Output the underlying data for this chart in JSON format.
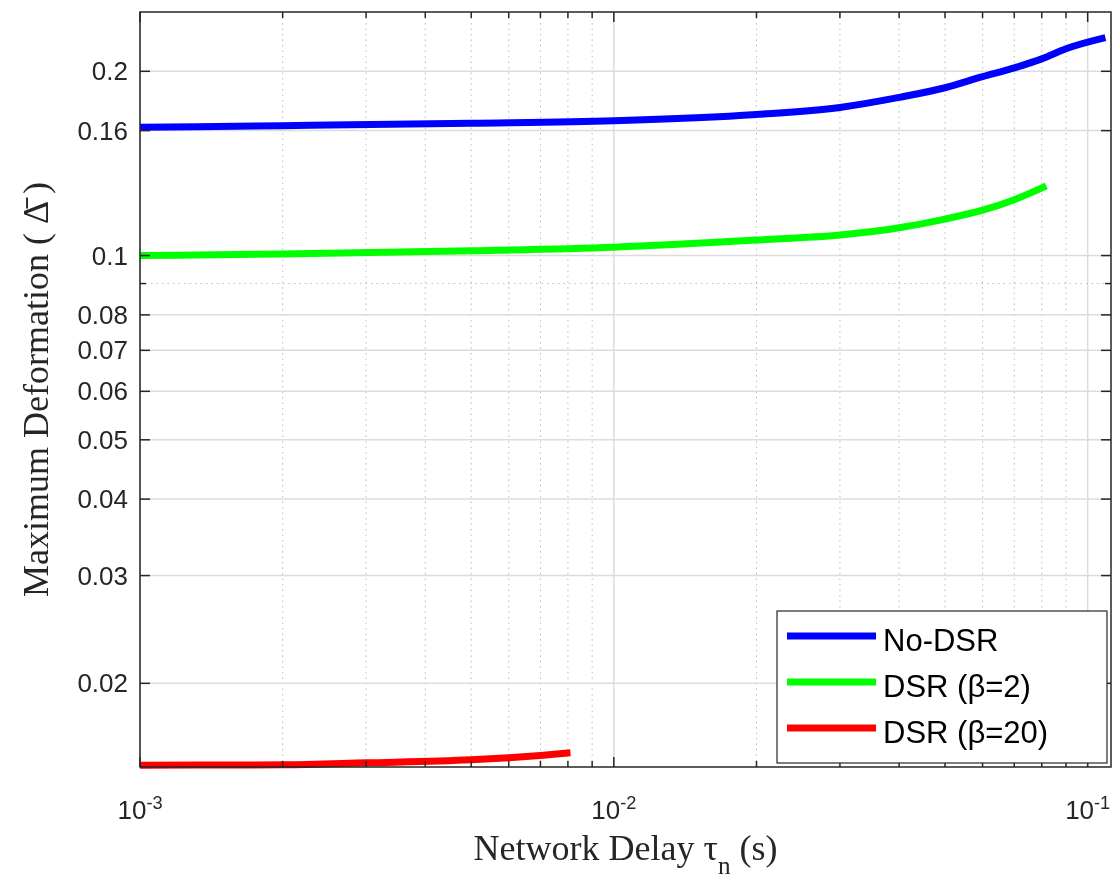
{
  "chart_data": {
    "type": "line",
    "xlabel": "Network Delay τ$_{n}$ (s)",
    "ylabel": "Maximum Deformation ( Δ̄ )",
    "log": "xy",
    "grid": true,
    "legend": "bottom right",
    "line_style": "solid",
    "marker": "none",
    "xlim": [
      0.001,
      0.112
    ],
    "ylim": [
      0.0146,
      0.25
    ],
    "xticks": [
      {
        "value": 0.001,
        "label": "10$^{-3}$"
      },
      {
        "value": 0.002,
        "label": null
      },
      {
        "value": 0.003,
        "label": null
      },
      {
        "value": 0.004,
        "label": null
      },
      {
        "value": 0.005,
        "label": null
      },
      {
        "value": 0.006,
        "label": null
      },
      {
        "value": 0.007,
        "label": null
      },
      {
        "value": 0.008,
        "label": null
      },
      {
        "value": 0.009,
        "label": null
      },
      {
        "value": 0.01,
        "label": "10$^{-2}$"
      },
      {
        "value": 0.02,
        "label": null
      },
      {
        "value": 0.03,
        "label": null
      },
      {
        "value": 0.04,
        "label": null
      },
      {
        "value": 0.05,
        "label": null
      },
      {
        "value": 0.06,
        "label": null
      },
      {
        "value": 0.07,
        "label": null
      },
      {
        "value": 0.08,
        "label": null
      },
      {
        "value": 0.09,
        "label": null
      },
      {
        "value": 0.1,
        "label": "10$^{-1}$"
      }
    ],
    "yticks": [
      0.02,
      0.03,
      0.04,
      0.05,
      0.06,
      0.07,
      0.08,
      {
        "value": 0.09,
        "label": null
      },
      0.1,
      0.16,
      0.2
    ],
    "series": [
      {
        "name": "No-DSR",
        "color": "#0000ff",
        "x": [
          0.001,
          0.002,
          0.005,
          0.01,
          0.02,
          0.03,
          0.04,
          0.05,
          0.06,
          0.07,
          0.08,
          0.09,
          0.109
        ],
        "values": [
          0.162,
          0.163,
          0.1645,
          0.166,
          0.17,
          0.1746,
          0.1813,
          0.188,
          0.196,
          0.2026,
          0.2096,
          0.2177,
          0.227
        ]
      },
      {
        "name": "DSR (β=2)",
        "color": "#00ff00",
        "x": [
          0.001,
          0.002,
          0.005,
          0.01,
          0.02,
          0.03,
          0.04,
          0.05,
          0.06,
          0.07,
          0.0818
        ],
        "values": [
          0.1,
          0.1006,
          0.1018,
          0.1032,
          0.106,
          0.108,
          0.111,
          0.1147,
          0.1186,
          0.1234,
          0.13
        ]
      },
      {
        "name": "DSR (β=20)",
        "color": "#ff0000",
        "x": [
          0.001,
          0.002,
          0.003,
          0.005,
          0.006,
          0.007,
          0.0081
        ],
        "values": [
          0.0147,
          0.01472,
          0.01483,
          0.015,
          0.01512,
          0.01525,
          0.0154
        ]
      }
    ]
  }
}
